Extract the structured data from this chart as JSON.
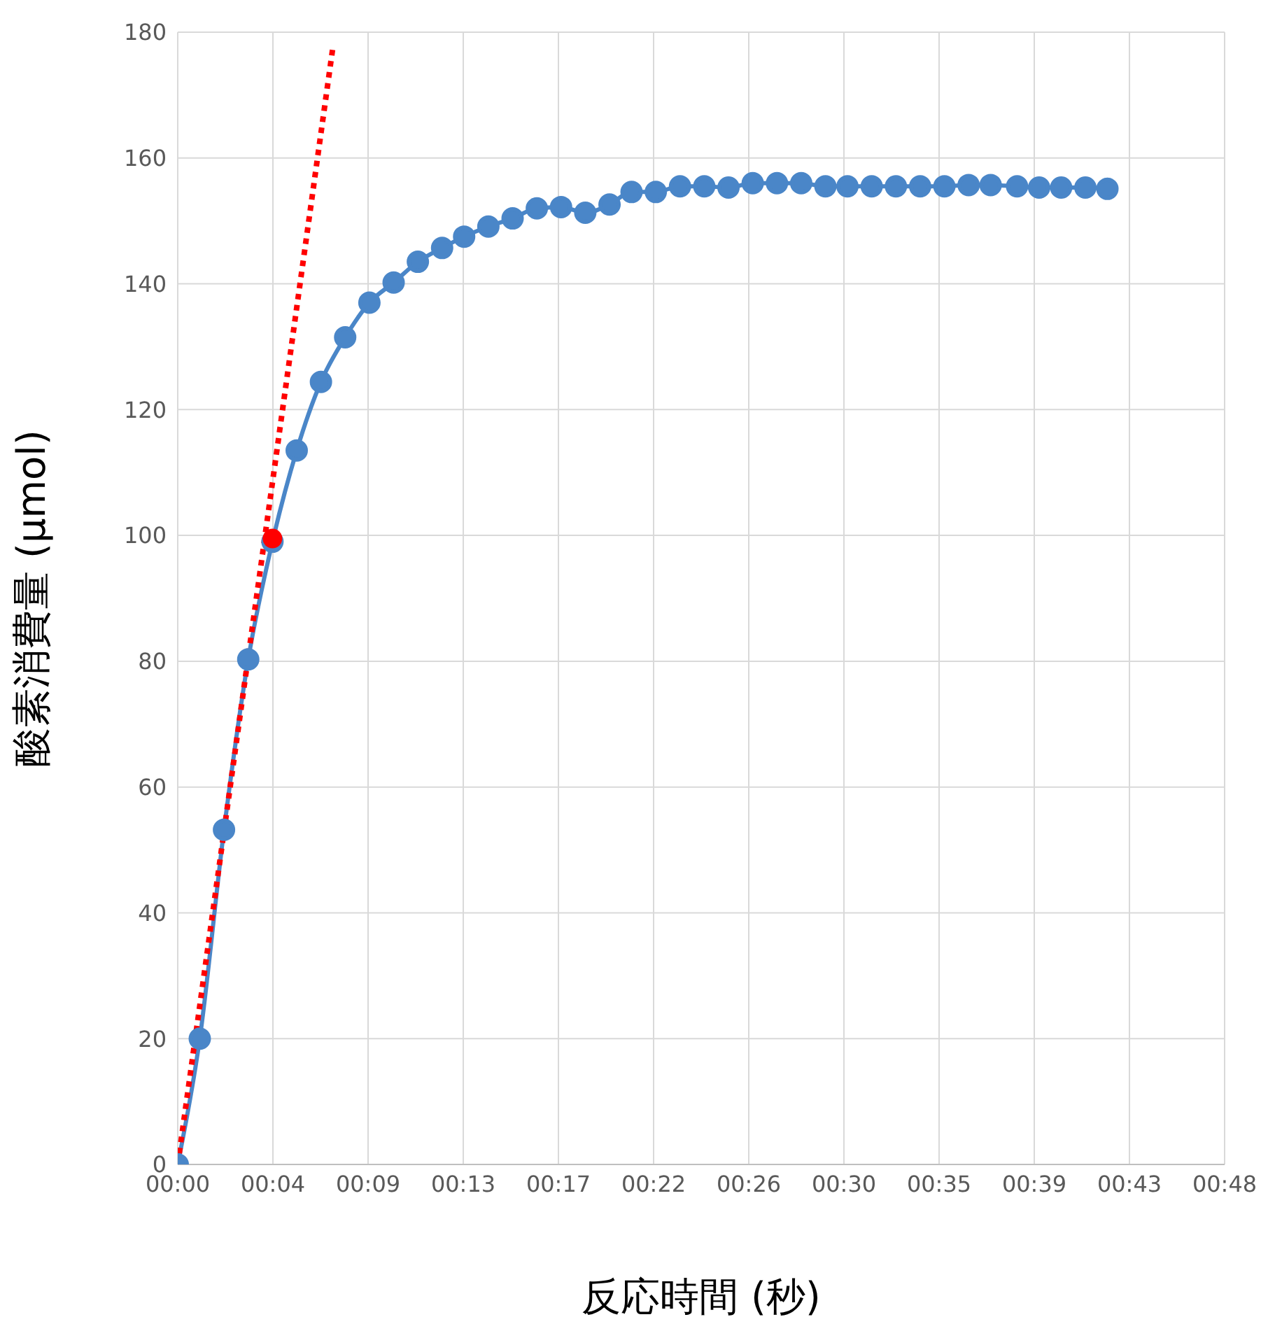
{
  "chart_data": {
    "type": "line",
    "xlabel": "反応時間 (秒)",
    "ylabel": "酸素消費量 (µmol)",
    "xlim": [
      0,
      47.52
    ],
    "xticks": [
      {
        "value": 0,
        "label": "00:00"
      },
      {
        "value": 4.32,
        "label": "00:04"
      },
      {
        "value": 8.64,
        "label": "00:09"
      },
      {
        "value": 12.96,
        "label": "00:13"
      },
      {
        "value": 17.28,
        "label": "00:17"
      },
      {
        "value": 21.6,
        "label": "00:22"
      },
      {
        "value": 25.92,
        "label": "00:26"
      },
      {
        "value": 30.24,
        "label": "00:30"
      },
      {
        "value": 34.56,
        "label": "00:35"
      },
      {
        "value": 38.88,
        "label": "00:39"
      },
      {
        "value": 43.2,
        "label": "00:43"
      },
      {
        "value": 47.52,
        "label": "00:48"
      }
    ],
    "ylim": [
      0,
      180
    ],
    "yticks": [
      0,
      20,
      40,
      60,
      80,
      100,
      120,
      140,
      160,
      180
    ],
    "grid": true,
    "series": [
      {
        "color": "#4a86c8",
        "marker": "circle",
        "line_style": "solid",
        "x": [
          0,
          1.0,
          2.1,
          3.2,
          4.3,
          5.4,
          6.5,
          7.6,
          8.7,
          9.8,
          10.9,
          12.0,
          13.0,
          14.1,
          15.2,
          16.3,
          17.4,
          18.5,
          19.6,
          20.6,
          21.7,
          22.8,
          23.9,
          25.0,
          26.1,
          27.2,
          28.3,
          29.4,
          30.4,
          31.5,
          32.6,
          33.7,
          34.8,
          35.9,
          36.9,
          38.1,
          39.1,
          40.1,
          41.2,
          42.2
        ],
        "values": [
          0,
          20,
          53.2,
          80.3,
          99,
          113.5,
          124.4,
          131.5,
          137,
          140.2,
          143.5,
          145.7,
          147.5,
          149.1,
          150.4,
          152,
          152.2,
          151.3,
          152.6,
          154.6,
          154.6,
          155.5,
          155.5,
          155.3,
          156,
          156,
          156,
          155.5,
          155.5,
          155.5,
          155.5,
          155.5,
          155.5,
          155.7,
          155.7,
          155.5,
          155.3,
          155.3,
          155.3,
          155.1
        ]
      },
      {
        "color": "#ff0000",
        "marker": "none",
        "line_style": "dotted",
        "x": [
          0,
          7.05
        ],
        "values": [
          0,
          177.8
        ]
      },
      {
        "type": "scatter",
        "color": "#ff0000",
        "marker": "circle",
        "x": [
          4.3
        ],
        "values": [
          99.5
        ]
      }
    ]
  }
}
